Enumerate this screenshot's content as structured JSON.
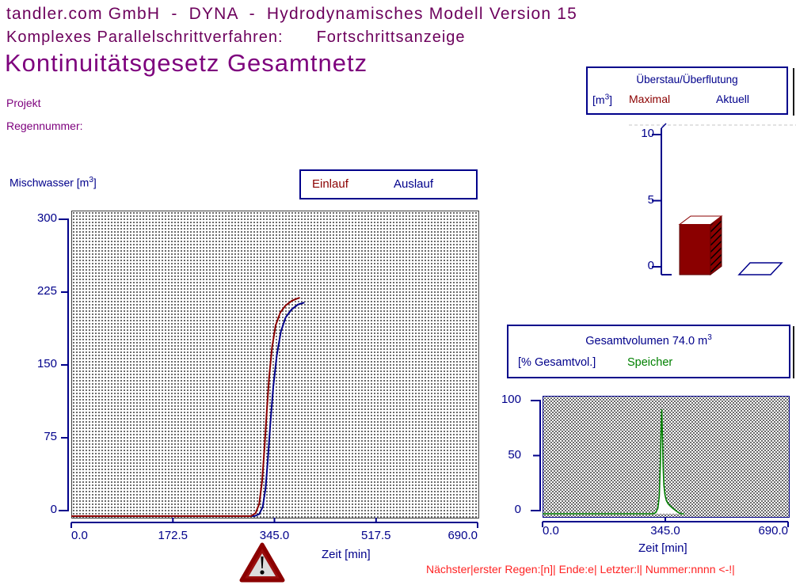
{
  "header": {
    "line1": "tandler.com GmbH  -  DYNA  -  Hydrodynamisches Modell Version 15",
    "line2_label": "Komplexes Parallelschrittverfahren:",
    "line2_value": "Fortschrittsanzeige",
    "title": "Kontinuitätsgesetz Gesamtnetz",
    "project_label": "Projekt",
    "rain_label": "Regennummer:"
  },
  "overflow_panel": {
    "title": "Überstau/Überflutung",
    "unit_prefix": "[m",
    "unit_exp": "3",
    "unit_suffix": "]",
    "col_maximal": "Maximal",
    "col_aktuell": "Aktuell"
  },
  "volume_panel": {
    "title_prefix": "Gesamtvolumen 74.0 m",
    "title_exp": "3",
    "total_volume_m3": "74.0",
    "pct_label": "[% Gesamtvol.]",
    "speicher_label": "Speicher"
  },
  "main_chart_labels": {
    "y_axis_prefix": "Mischwasser [m",
    "y_axis_exp": "3",
    "y_axis_suffix": "]",
    "legend_einlauf": "Einlauf",
    "legend_auslauf": "Auslauf",
    "x_axis": "Zeit [min]"
  },
  "speicher_chart_labels": {
    "x_axis": "Zeit [min]"
  },
  "status_bar": {
    "text": "Nächster|erster Regen:[n]| Ende:e| Letzter:l| Nummer:nnnn <-!|"
  },
  "colors": {
    "navy": "#00008B",
    "darkred": "#8B0000",
    "green": "#008000",
    "title_purple": "#7D007D",
    "header_purple": "#6C005C",
    "status_red": "#FF2222",
    "warning_red": "#9B0E0E",
    "warning_gray": "#DCDCDC"
  },
  "chart_data": [
    {
      "id": "overflow-bars",
      "type": "bar",
      "title": "Überstau/Überflutung",
      "ylabel": "[m3]",
      "categories": [
        "Maximal",
        "Aktuell"
      ],
      "values": [
        3.2,
        0
      ],
      "ylim": [
        0,
        10
      ],
      "yticks": [
        0,
        5,
        10
      ],
      "ytick_labels": [
        "0",
        "5",
        "10"
      ],
      "bar_color": "#8B0000",
      "aktuell_outline": "#00008B"
    },
    {
      "id": "mischwasser",
      "type": "line",
      "xlabel": "Zeit [min]",
      "ylabel": "Mischwasser [m3]",
      "xlim": [
        0,
        690
      ],
      "ylim": [
        0,
        300
      ],
      "xticks": [
        0,
        172.5,
        345,
        517.5,
        690
      ],
      "xtick_labels": [
        "0.0",
        "172.5",
        "345.0",
        "517.5",
        "690.0"
      ],
      "yticks": [
        0,
        75,
        150,
        225,
        300
      ],
      "ytick_labels": [
        "0",
        "75",
        "150",
        "225",
        "300"
      ],
      "legend_position": "top-right",
      "grid": "dotted",
      "series": [
        {
          "name": "Einlauf",
          "color": "#8B0000",
          "points": [
            [
              0,
              0
            ],
            [
              305,
              0
            ],
            [
              313,
              3
            ],
            [
              319,
              12
            ],
            [
              324,
              35
            ],
            [
              328,
              68
            ],
            [
              332,
              105
            ],
            [
              336,
              140
            ],
            [
              341,
              170
            ],
            [
              347,
              192
            ],
            [
              355,
              205
            ],
            [
              364,
              212
            ],
            [
              375,
              217
            ],
            [
              388,
              220
            ]
          ]
        },
        {
          "name": "Auslauf",
          "color": "#00008B",
          "points": [
            [
              0,
              0
            ],
            [
              311,
              0
            ],
            [
              319,
              2
            ],
            [
              325,
              9
            ],
            [
              330,
              28
            ],
            [
              334,
              58
            ],
            [
              338,
              93
            ],
            [
              343,
              130
            ],
            [
              349,
              162
            ],
            [
              356,
              186
            ],
            [
              364,
              200
            ],
            [
              374,
              208
            ],
            [
              385,
              213
            ],
            [
              396,
              215
            ]
          ]
        }
      ]
    },
    {
      "id": "speicher",
      "type": "area",
      "xlabel": "Zeit [min]",
      "ylabel": "[% Gesamtvol.]",
      "xlim": [
        0,
        690
      ],
      "ylim": [
        0,
        100
      ],
      "xticks": [
        0,
        345,
        690
      ],
      "xtick_labels": [
        "0.0",
        "345.0",
        "690.0"
      ],
      "yticks": [
        0,
        50,
        100
      ],
      "ytick_labels": [
        "0",
        "50",
        "100"
      ],
      "grid": "dotted",
      "series": [
        {
          "name": "Speicher",
          "color": "#008000",
          "fill": "#FFFFFF",
          "points": [
            [
              0,
              0
            ],
            [
              310,
              0
            ],
            [
              318,
              1
            ],
            [
              324,
              5
            ],
            [
              328,
              16
            ],
            [
              331,
              45
            ],
            [
              333,
              75
            ],
            [
              335,
              95
            ],
            [
              337,
              70
            ],
            [
              339,
              42
            ],
            [
              341,
              26
            ],
            [
              344,
              17
            ],
            [
              348,
              12
            ],
            [
              353,
              9
            ],
            [
              359,
              7
            ],
            [
              366,
              5
            ],
            [
              374,
              3
            ],
            [
              382,
              1
            ],
            [
              390,
              0
            ],
            [
              398,
              0
            ]
          ]
        }
      ]
    }
  ]
}
